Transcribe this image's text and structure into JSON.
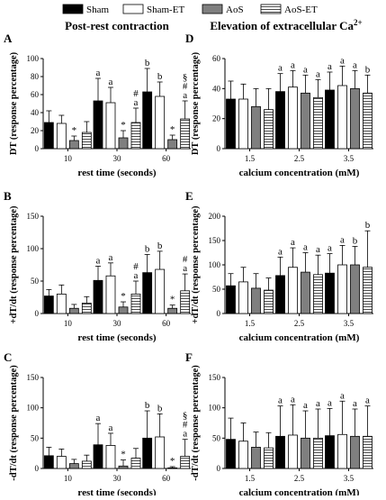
{
  "legend": {
    "items": [
      {
        "name": "Sham",
        "pattern": "black"
      },
      {
        "name": "Sham-ET",
        "pattern": "white"
      },
      {
        "name": "AoS",
        "pattern": "gray"
      },
      {
        "name": "AoS-ET",
        "pattern": "hatch"
      }
    ]
  },
  "column_titles": {
    "left": "Post-rest contraction",
    "right": "Elevation of extracellular Ca",
    "right_sup": "2+"
  },
  "colors": {
    "black": "#000000",
    "white": "#ffffff",
    "gray": "#7f7f7f",
    "stroke": "#000000"
  },
  "chart_data": [
    {
      "panel": "A",
      "type": "bar",
      "ylabel": "DT (response percentage)",
      "xlabel": "rest time (seconds)",
      "categories": [
        "10",
        "30",
        "60"
      ],
      "ylim": [
        0,
        100
      ],
      "yticks": [
        0,
        20,
        40,
        60,
        80,
        100
      ],
      "series": [
        {
          "name": "Sham",
          "values": [
            29,
            53,
            63
          ],
          "errors": [
            13,
            25,
            26
          ]
        },
        {
          "name": "Sham-ET",
          "values": [
            28,
            51,
            58
          ],
          "errors": [
            9,
            17,
            16
          ]
        },
        {
          "name": "AoS",
          "values": [
            9,
            12,
            10
          ],
          "errors": [
            5,
            8,
            5
          ]
        },
        {
          "name": "AoS-ET",
          "values": [
            18,
            29,
            33
          ],
          "errors": [
            12,
            16,
            20
          ]
        }
      ],
      "annotations": [
        [
          "",
          "",
          "*",
          ""
        ],
        [
          "a",
          "a",
          "*",
          "# a"
        ],
        [
          "b",
          "b",
          "*",
          "§ # a"
        ]
      ]
    },
    {
      "panel": "B",
      "type": "bar",
      "ylabel": "+dT/dt (response percentage)",
      "xlabel": "rest time (seconds)",
      "categories": [
        "10",
        "30",
        "60"
      ],
      "ylim": [
        0,
        150
      ],
      "yticks": [
        0,
        50,
        100,
        150
      ],
      "series": [
        {
          "name": "Sham",
          "values": [
            27,
            51,
            63
          ],
          "errors": [
            10,
            22,
            28
          ]
        },
        {
          "name": "Sham-ET",
          "values": [
            30,
            58,
            68
          ],
          "errors": [
            14,
            20,
            28
          ]
        },
        {
          "name": "AoS",
          "values": [
            8,
            10,
            8
          ],
          "errors": [
            6,
            8,
            5
          ]
        },
        {
          "name": "AoS-ET",
          "values": [
            16,
            30,
            35
          ],
          "errors": [
            10,
            20,
            26
          ]
        }
      ],
      "annotations": [
        [
          "",
          "",
          "",
          ""
        ],
        [
          "a",
          "a",
          "*",
          "# a"
        ],
        [
          "b",
          "b",
          "*",
          "# a"
        ]
      ]
    },
    {
      "panel": "C",
      "type": "bar",
      "ylabel": "-dT/dt (response percentage)",
      "xlabel": "rest time (seconds)",
      "categories": [
        "10",
        "30",
        "60"
      ],
      "ylim": [
        0,
        150
      ],
      "yticks": [
        0,
        50,
        100,
        150
      ],
      "series": [
        {
          "name": "Sham",
          "values": [
            21,
            39,
            50
          ],
          "errors": [
            14,
            35,
            45
          ]
        },
        {
          "name": "Sham-ET",
          "values": [
            20,
            38,
            52
          ],
          "errors": [
            12,
            20,
            38
          ]
        },
        {
          "name": "AoS",
          "values": [
            8,
            4,
            1
          ],
          "errors": [
            7,
            10,
            2
          ]
        },
        {
          "name": "AoS-ET",
          "values": [
            12,
            17,
            20
          ],
          "errors": [
            10,
            16,
            28
          ]
        }
      ],
      "annotations": [
        [
          "",
          "",
          "",
          ""
        ],
        [
          "a",
          "a",
          "*",
          ""
        ],
        [
          "b",
          "b",
          "*",
          "§ # a"
        ]
      ]
    },
    {
      "panel": "D",
      "type": "bar",
      "ylabel": "DT (response percentage)",
      "xlabel": "calcium concentration (mM)",
      "categories": [
        "1.5",
        "2.5",
        "3.5"
      ],
      "ylim": [
        0,
        60
      ],
      "yticks": [
        0,
        20,
        40,
        60
      ],
      "series": [
        {
          "name": "Sham",
          "values": [
            33,
            38,
            39
          ],
          "errors": [
            12,
            12,
            12
          ]
        },
        {
          "name": "Sham-ET",
          "values": [
            33,
            41,
            42
          ],
          "errors": [
            10,
            11,
            13
          ]
        },
        {
          "name": "AoS",
          "values": [
            28,
            37,
            40
          ],
          "errors": [
            12,
            12,
            12
          ]
        },
        {
          "name": "AoS-ET",
          "values": [
            26,
            34,
            37
          ],
          "errors": [
            14,
            12,
            12
          ]
        }
      ],
      "annotations": [
        [
          "",
          "",
          "",
          ""
        ],
        [
          "a",
          "a",
          "a",
          "a"
        ],
        [
          "a",
          "a",
          "a",
          "b"
        ]
      ]
    },
    {
      "panel": "E",
      "type": "bar",
      "ylabel": "+dT/dt (response percentage)",
      "xlabel": "calcium concentration (mM)",
      "categories": [
        "1.5",
        "2.5",
        "3.5"
      ],
      "ylim": [
        0,
        200
      ],
      "yticks": [
        0,
        50,
        100,
        150,
        200
      ],
      "series": [
        {
          "name": "Sham",
          "values": [
            57,
            78,
            83
          ],
          "errors": [
            25,
            38,
            40
          ]
        },
        {
          "name": "Sham-ET",
          "values": [
            65,
            95,
            100
          ],
          "errors": [
            30,
            40,
            40
          ]
        },
        {
          "name": "AoS",
          "values": [
            52,
            85,
            100
          ],
          "errors": [
            30,
            40,
            38
          ]
        },
        {
          "name": "AoS-ET",
          "values": [
            48,
            80,
            95
          ],
          "errors": [
            25,
            40,
            75
          ]
        }
      ],
      "annotations": [
        [
          "",
          "",
          "",
          ""
        ],
        [
          "a",
          "a",
          "a",
          "a"
        ],
        [
          "a",
          "a",
          "b",
          "b"
        ]
      ]
    },
    {
      "panel": "F",
      "type": "bar",
      "ylabel": "-dT/dt (response percentage)",
      "xlabel": "calcium concentration (mM)",
      "categories": [
        "1.5",
        "2.5",
        "3.5"
      ],
      "ylim": [
        0,
        150
      ],
      "yticks": [
        0,
        50,
        100,
        150
      ],
      "series": [
        {
          "name": "Sham",
          "values": [
            48,
            53,
            54
          ],
          "errors": [
            35,
            50,
            45
          ]
        },
        {
          "name": "Sham-ET",
          "values": [
            45,
            55,
            56
          ],
          "errors": [
            30,
            50,
            55
          ]
        },
        {
          "name": "AoS",
          "values": [
            35,
            50,
            53
          ],
          "errors": [
            25,
            45,
            45
          ]
        },
        {
          "name": "AoS-ET",
          "values": [
            34,
            50,
            53
          ],
          "errors": [
            25,
            48,
            50
          ]
        }
      ],
      "annotations": [
        [
          "",
          "",
          "",
          ""
        ],
        [
          "a",
          "a",
          "a",
          "a"
        ],
        [
          "a",
          "a",
          "a",
          "a"
        ]
      ]
    }
  ]
}
